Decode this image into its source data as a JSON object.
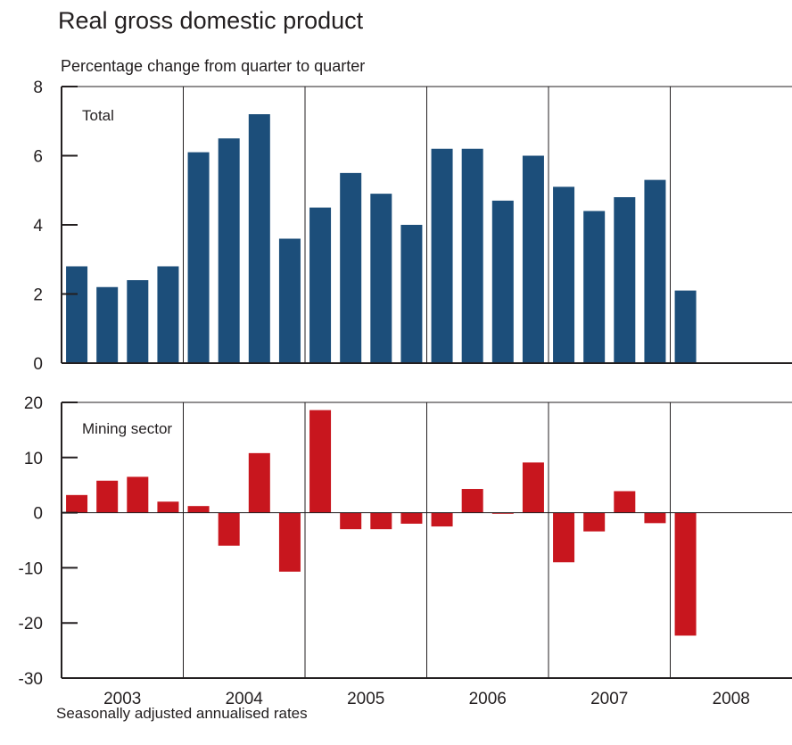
{
  "title": "Real gross domestic product",
  "subtitle": "Percentage change from quarter to quarter",
  "footnote": "Seasonally adjusted annualised rates",
  "colors": {
    "total_bars": "#1c4e7a",
    "mining_bars": "#c8161e",
    "axis": "#231f20"
  },
  "chart_data": [
    {
      "type": "bar",
      "panel_label": "Total",
      "ylim": [
        0,
        8
      ],
      "yticks": [
        "0",
        "2",
        "4",
        "6",
        "8"
      ],
      "categories": [
        "2003Q1",
        "2003Q2",
        "2003Q3",
        "2003Q4",
        "2004Q1",
        "2004Q2",
        "2004Q3",
        "2004Q4",
        "2005Q1",
        "2005Q2",
        "2005Q3",
        "2005Q4",
        "2006Q1",
        "2006Q2",
        "2006Q3",
        "2006Q4",
        "2007Q1",
        "2007Q2",
        "2007Q3",
        "2007Q4",
        "2008Q1",
        "2008Q2",
        "2008Q3",
        "2008Q4"
      ],
      "values": [
        2.8,
        2.2,
        2.4,
        2.8,
        6.1,
        6.5,
        7.2,
        3.6,
        4.5,
        5.5,
        4.9,
        4.0,
        6.2,
        6.2,
        4.7,
        6.0,
        5.1,
        4.4,
        4.8,
        5.3,
        2.1,
        null,
        null,
        null
      ]
    },
    {
      "type": "bar",
      "panel_label": "Mining sector",
      "ylim": [
        -30,
        20
      ],
      "yticks": [
        "-30",
        "-20",
        "-10",
        "0",
        "10",
        "20"
      ],
      "categories": [
        "2003Q1",
        "2003Q2",
        "2003Q3",
        "2003Q4",
        "2004Q1",
        "2004Q2",
        "2004Q3",
        "2004Q4",
        "2005Q1",
        "2005Q2",
        "2005Q3",
        "2005Q4",
        "2006Q1",
        "2006Q2",
        "2006Q3",
        "2006Q4",
        "2007Q1",
        "2007Q2",
        "2007Q3",
        "2007Q4",
        "2008Q1",
        "2008Q2",
        "2008Q3",
        "2008Q4"
      ],
      "values": [
        3.2,
        5.8,
        6.5,
        2.0,
        1.2,
        -6.0,
        10.8,
        -10.7,
        18.6,
        -3.0,
        -3.0,
        -2.0,
        -2.5,
        4.3,
        -0.2,
        9.1,
        -9.0,
        -3.4,
        3.9,
        -1.9,
        -22.3,
        null,
        null,
        null
      ]
    }
  ],
  "x_axis": {
    "years": [
      "2003",
      "2004",
      "2005",
      "2006",
      "2007",
      "2008"
    ]
  }
}
